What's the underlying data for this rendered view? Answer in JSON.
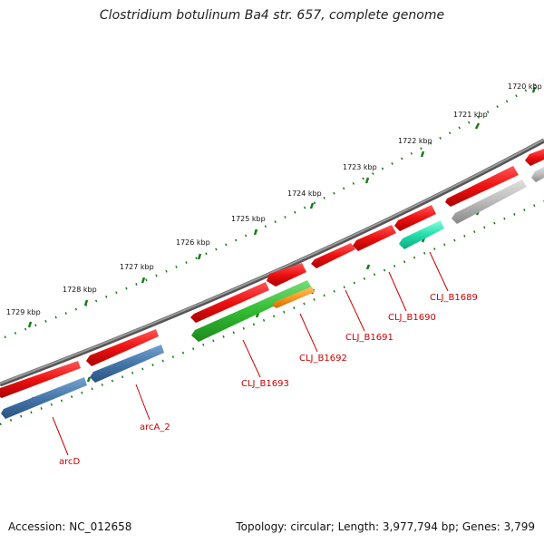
{
  "title": "Clostridium botulinum Ba4 str. 657, complete genome",
  "footer": {
    "accession": "Accession: NC_012658",
    "stats": "Topology: circular; Length: 3,977,794 bp; Genes: 3,799"
  },
  "kbp_labels": [
    "1720 kbp",
    "1721 kbp",
    "1722 kbp",
    "1723 kbp",
    "1724 kbp",
    "1725 kbp",
    "1726 kbp",
    "1727 kbp",
    "1728 kbp",
    "1729 kbp"
  ],
  "gene_labels": [
    "arcD",
    "arcA_2",
    "CLJ_B1693",
    "CLJ_B1692",
    "CLJ_B1691",
    "CLJ_B1690",
    "CLJ_B1689"
  ],
  "colors": {
    "backbone": "#777777",
    "cds": "#ee1111",
    "cds_blue": "#4477aa",
    "cds_green": "#33bb33",
    "cds_orange": "#ff9922",
    "cds_teal": "#22ddaa",
    "cds_gray": "#b8b8b8",
    "ticks": "#1b7a1b",
    "label": "#cc0000"
  }
}
